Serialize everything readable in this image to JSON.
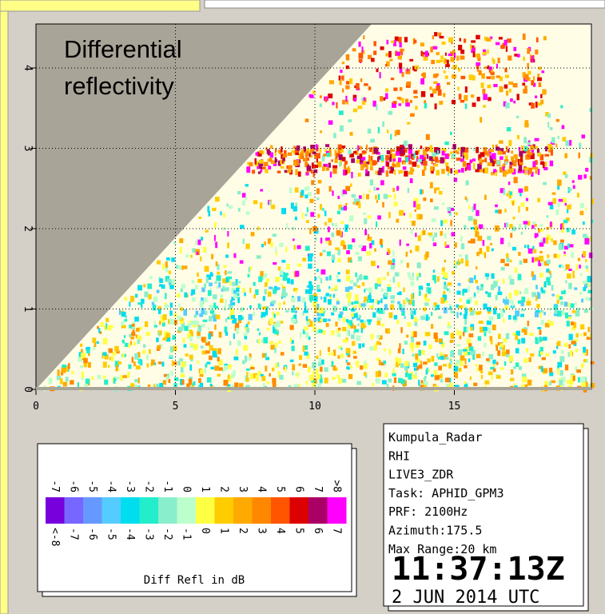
{
  "plot": {
    "title_lines": [
      "Differential",
      "reflectivity"
    ],
    "x_ticks": [
      "0",
      "5",
      "10",
      "15"
    ],
    "y_ticks": [
      "0",
      "1",
      "2",
      "3",
      "4"
    ]
  },
  "colorbar": {
    "upper_labels": [
      "-7",
      "-6",
      "-5",
      "-4",
      "-3",
      "-2",
      "-1",
      "0",
      "1",
      "2",
      "3",
      "4",
      "5",
      "6",
      "7",
      ">8"
    ],
    "lower_labels": [
      "<-8",
      "-7",
      "-6",
      "-5",
      "-4",
      "-3",
      "-2",
      "-1",
      "0",
      "1",
      "2",
      "3",
      "4",
      "5",
      "6",
      "7"
    ],
    "colors": [
      "#7700dd",
      "#7766ff",
      "#6699ff",
      "#55ccff",
      "#00ddee",
      "#22eecc",
      "#88eecc",
      "#bbffcc",
      "#ffff44",
      "#ffcc00",
      "#ffaa00",
      "#ff8800",
      "#ff5500",
      "#dd0000",
      "#aa0066",
      "#ff00ff"
    ],
    "caption": "Diff Refl in dB"
  },
  "info": {
    "lines": [
      "Kumpula_Radar",
      "RHI",
      "LIVE3_ZDR",
      "Task: APHID_GPM3",
      "PRF: 2100Hz",
      "Azimuth:175.5",
      "Max Range:20 km"
    ],
    "time": "11:37:13Z",
    "date": "2 JUN 2014 UTC"
  }
}
